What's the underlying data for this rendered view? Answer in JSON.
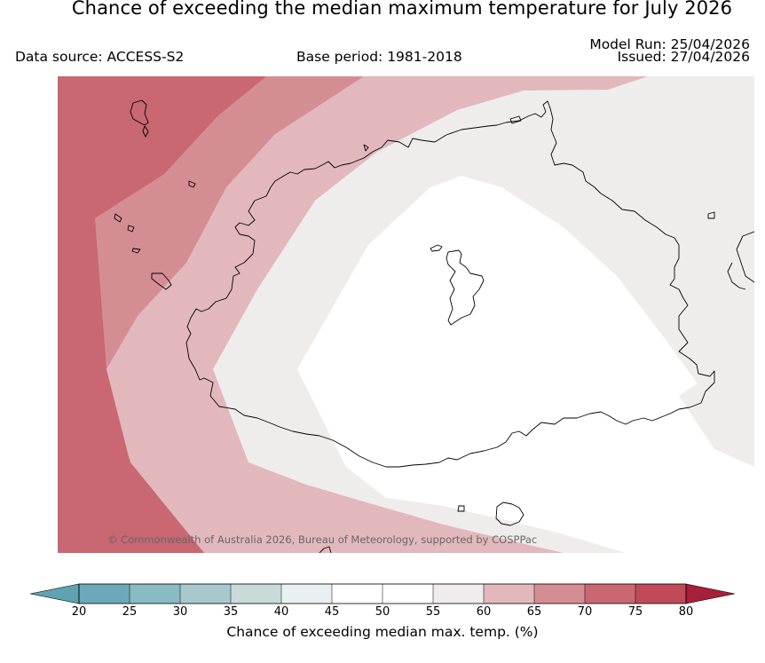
{
  "title": "Chance of exceeding the median maximum temperature for July 2026",
  "data_source": "Data source: ACCESS-S2",
  "base_period": "Base period: 1981-2018",
  "model_run": "Model Run: 25/04/2026",
  "issued": "Issued: 27/04/2026",
  "credit": "© Commonwealth of Australia 2026, Bureau of Meteorology, supported by COSPPac",
  "colorbar": {
    "label": "Chance of exceeding median max. temp. (%)",
    "ticks": [
      "20",
      "25",
      "30",
      "35",
      "40",
      "45",
      "50",
      "55",
      "60",
      "65",
      "70",
      "75",
      "80"
    ],
    "under_color": "#5fa3b1",
    "over_color": "#a81f3a",
    "bin_colors": [
      "#6aaab8",
      "#8abac4",
      "#a7c8cd",
      "#c9dadb",
      "#e9f0f1",
      "#ffffff",
      "#ffffff",
      "#efedec",
      "#e2b8bd",
      "#d58d94",
      "#c96772",
      "#c14a59"
    ]
  },
  "map_colors": {
    "p55_60": "#efedec",
    "p60_65": "#e2b8bd",
    "p65_70": "#d58d94",
    "p70_75": "#c96772",
    "below_55": "#ffffff"
  }
}
